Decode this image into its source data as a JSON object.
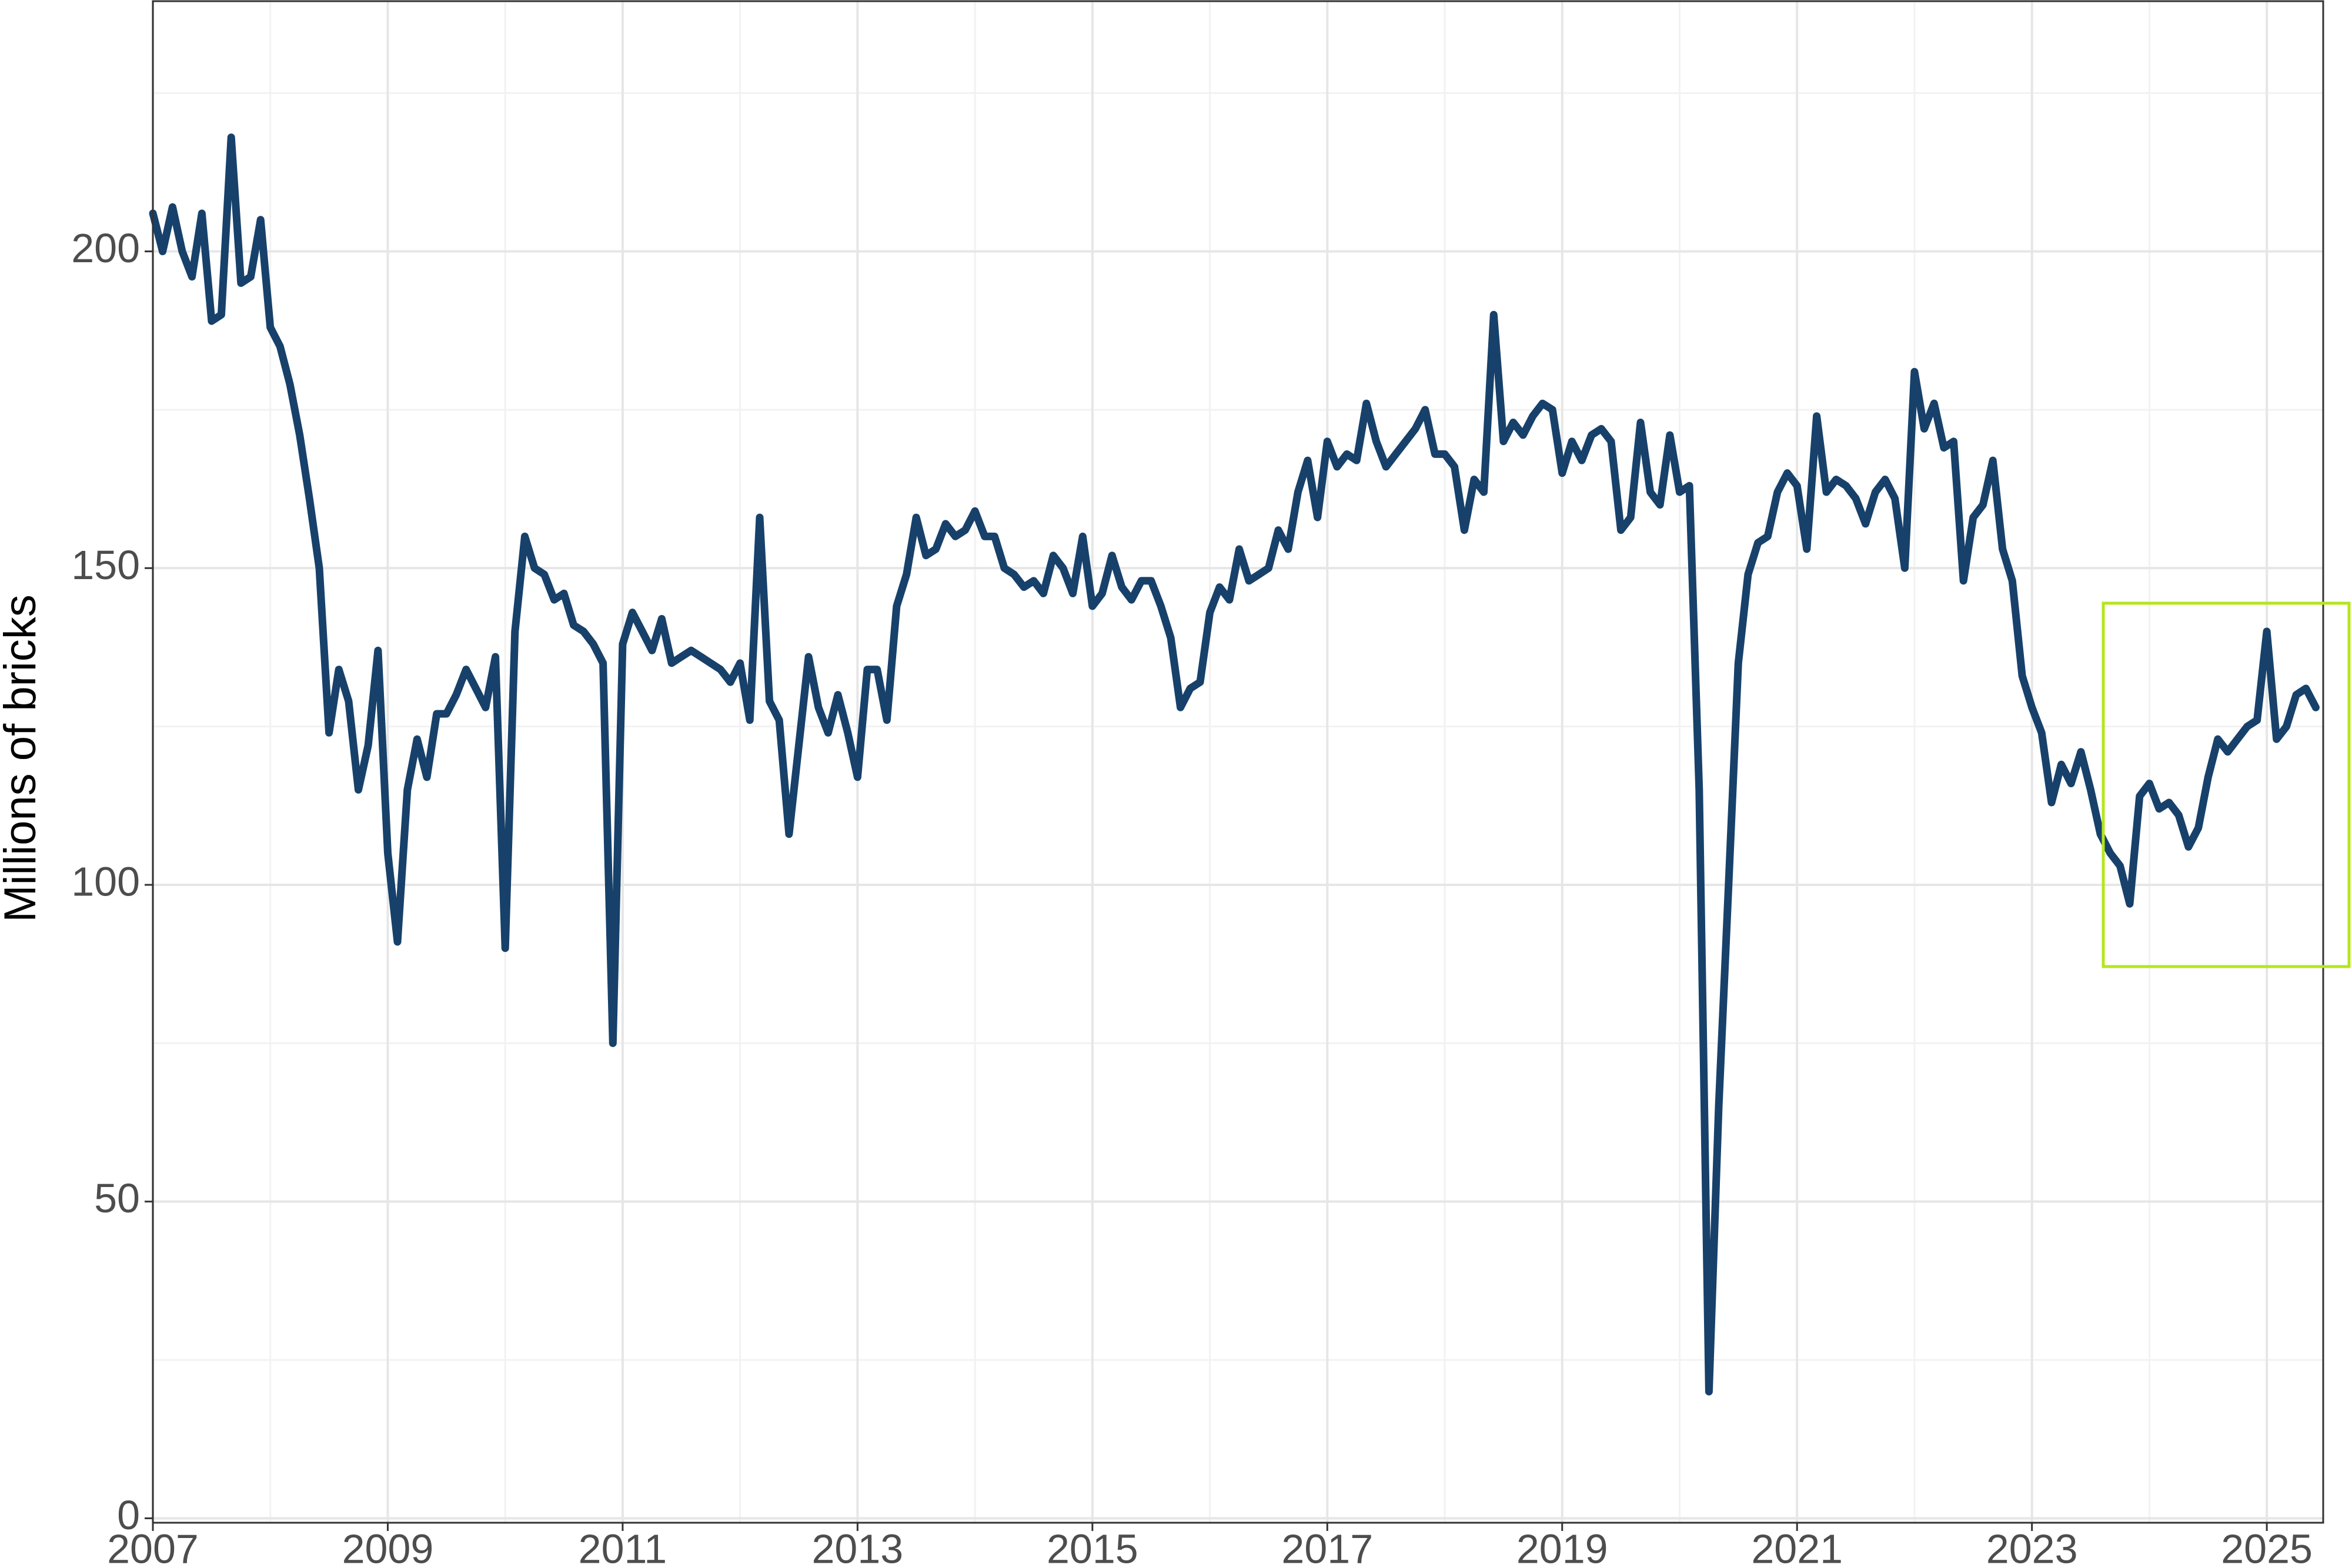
{
  "chart_data": {
    "type": "line",
    "y_label": "Millions of bricks",
    "color": "#17416a",
    "highlight_color": "#b5e61d",
    "xlim": [
      2007,
      2025.48
    ],
    "ylim": [
      -0.7,
      239.5
    ],
    "xticks": [
      2007,
      2009,
      2011,
      2013,
      2015,
      2017,
      2019,
      2021,
      2023,
      2025
    ],
    "minor_xticks": [
      2008,
      2010,
      2012,
      2014,
      2016,
      2018,
      2020,
      2022,
      2024
    ],
    "yticks": [
      0,
      50,
      100,
      150,
      200
    ],
    "minor_yticks": [
      25,
      75,
      125,
      175,
      225
    ],
    "grid": true,
    "x": [
      2007,
      2007.083,
      2007.167,
      2007.25,
      2007.333,
      2007.417,
      2007.5,
      2007.583,
      2007.667,
      2007.75,
      2007.833,
      2007.917,
      2008,
      2008.083,
      2008.167,
      2008.25,
      2008.333,
      2008.417,
      2008.5,
      2008.583,
      2008.667,
      2008.75,
      2008.833,
      2008.917,
      2009,
      2009.083,
      2009.167,
      2009.25,
      2009.333,
      2009.417,
      2009.5,
      2009.583,
      2009.667,
      2009.75,
      2009.833,
      2009.917,
      2010,
      2010.083,
      2010.167,
      2010.25,
      2010.333,
      2010.417,
      2010.5,
      2010.583,
      2010.667,
      2010.75,
      2010.833,
      2010.917,
      2011,
      2011.083,
      2011.167,
      2011.25,
      2011.333,
      2011.417,
      2011.5,
      2011.583,
      2011.667,
      2011.75,
      2011.833,
      2011.917,
      2012,
      2012.083,
      2012.167,
      2012.25,
      2012.333,
      2012.417,
      2012.5,
      2012.583,
      2012.667,
      2012.75,
      2012.833,
      2012.917,
      2013,
      2013.083,
      2013.167,
      2013.25,
      2013.333,
      2013.417,
      2013.5,
      2013.583,
      2013.667,
      2013.75,
      2013.833,
      2013.917,
      2014,
      2014.083,
      2014.167,
      2014.25,
      2014.333,
      2014.417,
      2014.5,
      2014.583,
      2014.667,
      2014.75,
      2014.833,
      2014.917,
      2015,
      2015.083,
      2015.167,
      2015.25,
      2015.333,
      2015.417,
      2015.5,
      2015.583,
      2015.667,
      2015.75,
      2015.833,
      2015.917,
      2016,
      2016.083,
      2016.167,
      2016.25,
      2016.333,
      2016.417,
      2016.5,
      2016.583,
      2016.667,
      2016.75,
      2016.833,
      2016.917,
      2017,
      2017.083,
      2017.167,
      2017.25,
      2017.333,
      2017.417,
      2017.5,
      2017.583,
      2017.667,
      2017.75,
      2017.833,
      2017.917,
      2018,
      2018.083,
      2018.167,
      2018.25,
      2018.333,
      2018.417,
      2018.5,
      2018.583,
      2018.667,
      2018.75,
      2018.833,
      2018.917,
      2019,
      2019.083,
      2019.167,
      2019.25,
      2019.333,
      2019.417,
      2019.5,
      2019.583,
      2019.667,
      2019.75,
      2019.833,
      2019.917,
      2020,
      2020.083,
      2020.167,
      2020.25,
      2020.333,
      2020.417,
      2020.5,
      2020.583,
      2020.667,
      2020.75,
      2020.833,
      2020.917,
      2021,
      2021.083,
      2021.167,
      2021.25,
      2021.333,
      2021.417,
      2021.5,
      2021.583,
      2021.667,
      2021.75,
      2021.833,
      2021.917,
      2022,
      2022.083,
      2022.167,
      2022.25,
      2022.333,
      2022.417,
      2022.5,
      2022.583,
      2022.667,
      2022.75,
      2022.833,
      2022.917,
      2023,
      2023.083,
      2023.167,
      2023.25,
      2023.333,
      2023.417,
      2023.5,
      2023.583,
      2023.667,
      2023.75,
      2023.833,
      2023.917,
      2024,
      2024.083,
      2024.167,
      2024.25,
      2024.333,
      2024.417,
      2024.5,
      2024.583,
      2024.667,
      2024.75,
      2024.833,
      2024.917,
      2025,
      2025.083,
      2025.167,
      2025.25,
      2025.333,
      2025.417
    ],
    "values": [
      206,
      200,
      207,
      200,
      196,
      206,
      189,
      190,
      218,
      195,
      196,
      205,
      188,
      185,
      179,
      171,
      161,
      150,
      124,
      134,
      129,
      115,
      122,
      137,
      105,
      91,
      115,
      123,
      117,
      127,
      127,
      130,
      134,
      131,
      128,
      136,
      90,
      140,
      155,
      150,
      149,
      145,
      146,
      141,
      140,
      138,
      135,
      75,
      138,
      143,
      140,
      137,
      142,
      135,
      136,
      137,
      136,
      135,
      134,
      132,
      135,
      126,
      158,
      129,
      126,
      108,
      122,
      136,
      128,
      124,
      130,
      124,
      117,
      134,
      134,
      126,
      144,
      149,
      158,
      152,
      153,
      157,
      155,
      156,
      159,
      155,
      155,
      150,
      149,
      147,
      148,
      146,
      152,
      150,
      146,
      155,
      144,
      146,
      152,
      147,
      145,
      148,
      148,
      144,
      139,
      128,
      131,
      132,
      143,
      147,
      145,
      153,
      148,
      149,
      150,
      156,
      153,
      162,
      167,
      158,
      170,
      166,
      168,
      167,
      176,
      170,
      166,
      168,
      170,
      172,
      175,
      168,
      168,
      166,
      156,
      164,
      162,
      190,
      170,
      173,
      171,
      174,
      176,
      175,
      165,
      170,
      167,
      171,
      172,
      170,
      156,
      158,
      173,
      162,
      160,
      171,
      162,
      163,
      115,
      20,
      65,
      100,
      135,
      149,
      154,
      155,
      162,
      165,
      163,
      153,
      174,
      162,
      164,
      163,
      161,
      157,
      162,
      164,
      161,
      150,
      181,
      172,
      176,
      169,
      170,
      148,
      158,
      160,
      167,
      153,
      148,
      133,
      128,
      124,
      113,
      119,
      116,
      121,
      115,
      108,
      105,
      103,
      97,
      114,
      116,
      112,
      113,
      111,
      106,
      109,
      117,
      123,
      121,
      123,
      125,
      126,
      140,
      123,
      125,
      130,
      131,
      128
    ]
  }
}
